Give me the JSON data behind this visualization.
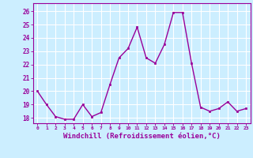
{
  "x": [
    0,
    1,
    2,
    3,
    4,
    5,
    6,
    7,
    8,
    9,
    10,
    11,
    12,
    13,
    14,
    15,
    16,
    17,
    18,
    19,
    20,
    21,
    22,
    23
  ],
  "y": [
    20.0,
    19.0,
    18.1,
    17.9,
    17.9,
    19.0,
    18.1,
    18.4,
    20.5,
    22.5,
    23.2,
    24.8,
    22.5,
    22.1,
    23.5,
    25.9,
    25.9,
    22.1,
    18.8,
    18.5,
    18.7,
    19.2,
    18.5,
    18.7
  ],
  "line_color": "#990099",
  "marker": "s",
  "marker_size": 2.0,
  "linewidth": 1.0,
  "bg_color": "#cceeff",
  "grid_color": "#ffffff",
  "tick_color": "#990099",
  "xlabel": "Windchill (Refroidissement éolien,°C)",
  "xlabel_fontsize": 6.5,
  "ylabel_ticks": [
    18,
    19,
    20,
    21,
    22,
    23,
    24,
    25,
    26
  ],
  "ylim": [
    17.6,
    26.6
  ],
  "xlim": [
    -0.5,
    23.5
  ],
  "xtick_labels": [
    "0",
    "1",
    "2",
    "3",
    "4",
    "5",
    "6",
    "7",
    "8",
    "9",
    "10",
    "11",
    "12",
    "13",
    "14",
    "15",
    "16",
    "17",
    "18",
    "19",
    "20",
    "21",
    "22",
    "23"
  ]
}
